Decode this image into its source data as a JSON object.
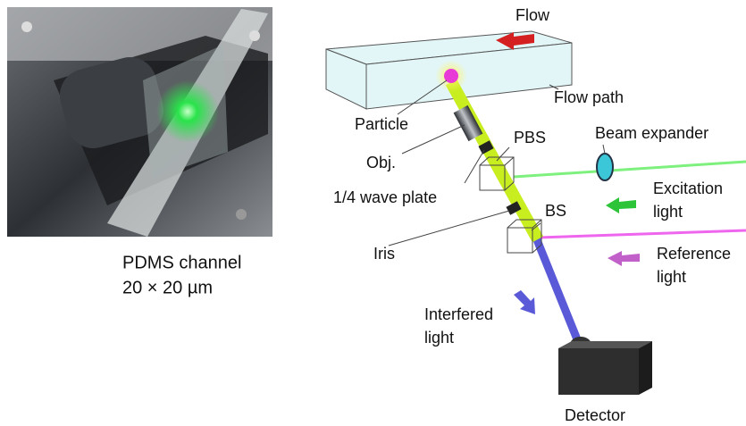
{
  "photo_caption": [
    "PDMS channel",
    "20 × 20 µm"
  ],
  "labels": {
    "flow": "Flow",
    "flow_path": "Flow path",
    "particle": "Particle",
    "obj": "Obj.",
    "pbs": "PBS",
    "beam_expander": "Beam expander",
    "wave_plate": "1/4 wave plate",
    "excitation": [
      "Excitation",
      "light"
    ],
    "bs": "BS",
    "iris": "Iris",
    "reference": [
      "Reference",
      "light"
    ],
    "interfered": [
      "Interfered",
      "light"
    ],
    "detector": "Detector"
  }
}
